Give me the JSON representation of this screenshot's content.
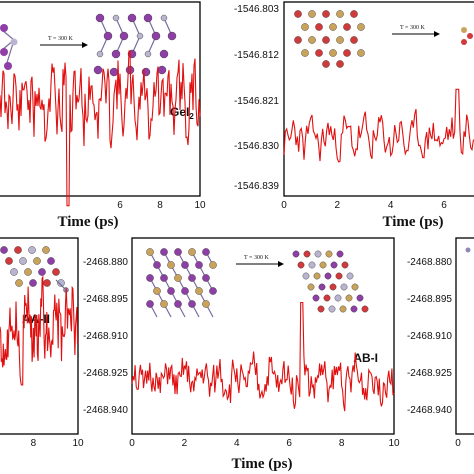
{
  "chart_data": [
    {
      "type": "line",
      "id": "gei2",
      "xlabel": "Time (ps)",
      "x_ticks": [
        "6",
        "8",
        "10"
      ],
      "xlim": [
        0,
        10
      ],
      "tag": "GeI",
      "tag_subscript": "2",
      "inset_label": "T = 300 K",
      "series": [
        {
          "x_step": 0.05,
          "seed": 11,
          "spike_at": 3.4,
          "amp": 0.28,
          "spike": 0.55,
          "mean": 0.5
        }
      ]
    },
    {
      "type": "line",
      "id": "panel-top-right",
      "xlabel": "Time (ps)",
      "x_ticks": [
        "0",
        "2",
        "4",
        "6"
      ],
      "xlim": [
        0,
        7.5
      ],
      "y_ticks": [
        "-1546.803",
        "-1546.812",
        "-1546.821",
        "-1546.830",
        "-1546.839"
      ],
      "ylim": [
        -1546.84,
        -1546.8
      ],
      "inset_label": "T = 300 K",
      "series": [
        {
          "x_step": 0.05,
          "seed": 23,
          "spike_at": 6.5,
          "amp": 0.006,
          "spike": 0.01,
          "mean": -1546.828
        }
      ]
    },
    {
      "type": "line",
      "id": "aa-ii",
      "xlabel": "",
      "x_ticks": [
        "8",
        "10"
      ],
      "xlim": [
        6.5,
        10
      ],
      "tag": "AA-II",
      "series": [
        {
          "x_step": 0.03,
          "seed": 37,
          "spike_at": 7.5,
          "amp": 0.28,
          "spike": 0.3,
          "mean": 0.45
        }
      ]
    },
    {
      "type": "line",
      "id": "ab-i",
      "xlabel": "Time (ps)",
      "x_ticks": [
        "0",
        "2",
        "4",
        "6",
        "8",
        "10"
      ],
      "xlim": [
        0,
        10
      ],
      "y_ticks": [
        "-2468.880",
        "-2468.895",
        "-2468.910",
        "-2468.925",
        "-2468.940"
      ],
      "ylim": [
        -2468.948,
        -2468.872
      ],
      "tag": "AB-I",
      "inset_label": "T = 300 K",
      "series": [
        {
          "x_step": 0.04,
          "seed": 51,
          "spike_at": 6.5,
          "amp": 0.012,
          "spike": 0.03,
          "mean": -2468.927
        }
      ]
    },
    {
      "type": "line",
      "id": "panel-bottom-right",
      "xlabel": "",
      "x_ticks": [
        "0"
      ],
      "xlim": [
        0,
        1
      ],
      "y_ticks": [
        "-2468.880",
        "-2468.895",
        "-2468.910",
        "-2468.925",
        "-2468.940"
      ],
      "ylim": [
        -2468.948,
        -2468.872
      ],
      "series": []
    }
  ]
}
